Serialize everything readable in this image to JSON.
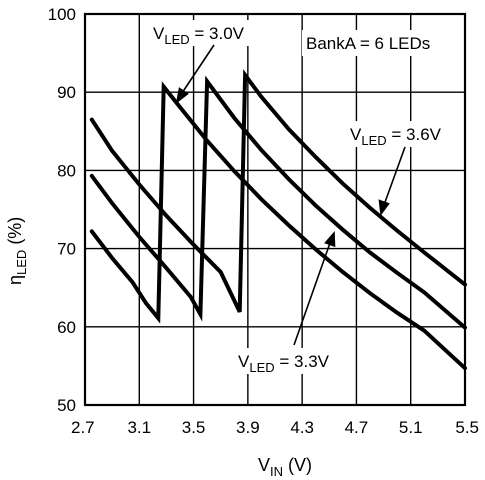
{
  "chart_data": {
    "type": "line",
    "xlabel": {
      "main": "V",
      "sub": "IN",
      "unit": " (V)"
    },
    "ylabel": {
      "main": "η",
      "sub": "LED",
      "unit": " (%)"
    },
    "xlim": [
      2.7,
      5.5
    ],
    "ylim": [
      50,
      100
    ],
    "x_ticks": [
      "2.7",
      "3.1",
      "3.5",
      "3.9",
      "4.3",
      "4.7",
      "5.1",
      "5.5"
    ],
    "y_ticks": [
      "50",
      "60",
      "70",
      "80",
      "90",
      "100"
    ],
    "grid": true,
    "annotations": [
      {
        "main": "V",
        "sub": "LED",
        "rest": " = 3.0V"
      },
      {
        "main": "V",
        "sub": "LED",
        "rest": " = 3.6V"
      },
      {
        "main": "V",
        "sub": "LED",
        "rest": " = 3.3V"
      }
    ],
    "note": "BankA = 6 LEDs",
    "series": [
      {
        "name": "VLED = 3.0V",
        "points": [
          [
            2.75,
            72.2
          ],
          [
            2.9,
            68.8
          ],
          [
            3.05,
            65.7
          ],
          [
            3.15,
            63.0
          ],
          [
            3.24,
            61.1
          ],
          [
            3.28,
            90.7
          ],
          [
            3.4,
            88.1
          ],
          [
            3.6,
            83.8
          ],
          [
            3.8,
            79.9
          ],
          [
            4.0,
            76.3
          ],
          [
            4.2,
            73.0
          ],
          [
            4.4,
            69.9
          ],
          [
            4.6,
            67.0
          ],
          [
            4.8,
            64.3
          ],
          [
            5.0,
            61.8
          ],
          [
            5.2,
            59.5
          ],
          [
            5.5,
            54.7
          ]
        ]
      },
      {
        "name": "VLED = 3.3V",
        "points": [
          [
            2.75,
            79.3
          ],
          [
            2.9,
            75.8
          ],
          [
            3.1,
            71.5
          ],
          [
            3.3,
            67.5
          ],
          [
            3.48,
            63.8
          ],
          [
            3.55,
            61.6
          ],
          [
            3.6,
            91.4
          ],
          [
            3.8,
            86.7
          ],
          [
            4.0,
            82.6
          ],
          [
            4.2,
            78.9
          ],
          [
            4.4,
            75.5
          ],
          [
            4.6,
            72.4
          ],
          [
            4.8,
            69.5
          ],
          [
            5.0,
            66.9
          ],
          [
            5.2,
            64.4
          ],
          [
            5.5,
            59.9
          ]
        ]
      },
      {
        "name": "VLED = 3.6V",
        "points": [
          [
            2.75,
            86.5
          ],
          [
            2.9,
            82.5
          ],
          [
            3.1,
            78.2
          ],
          [
            3.3,
            74.2
          ],
          [
            3.5,
            70.5
          ],
          [
            3.7,
            67.0
          ],
          [
            3.84,
            61.9
          ],
          [
            3.88,
            92.2
          ],
          [
            4.0,
            89.4
          ],
          [
            4.2,
            85.3
          ],
          [
            4.4,
            81.7
          ],
          [
            4.6,
            78.3
          ],
          [
            4.8,
            75.2
          ],
          [
            5.0,
            72.3
          ],
          [
            5.2,
            69.5
          ],
          [
            5.5,
            65.4
          ]
        ]
      }
    ]
  }
}
